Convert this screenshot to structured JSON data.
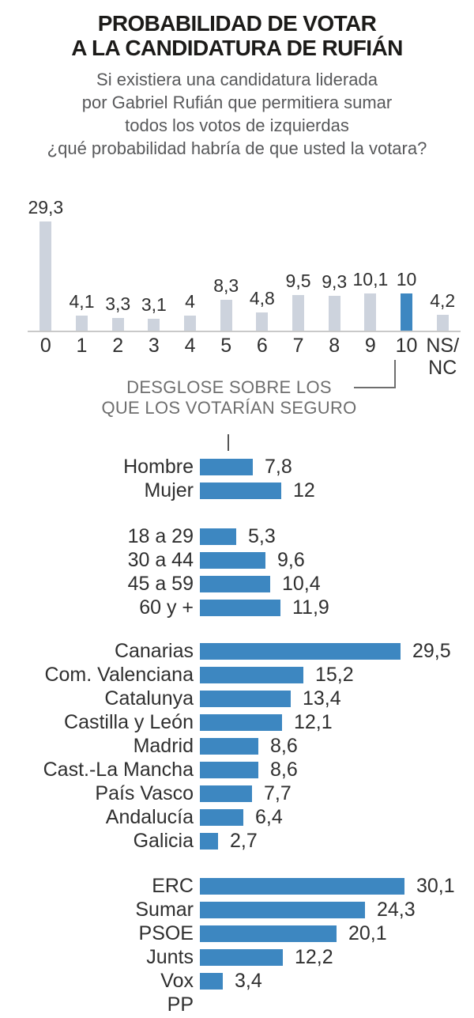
{
  "title": {
    "line1": "PROBABILIDAD DE VOTAR",
    "line2": "A LA CANDIDATURA DE RUFIÁN"
  },
  "subtitle": {
    "line1": "Si existiera una candidatura liderada",
    "line2": "por Gabriel Rufián que permitiera sumar",
    "line3": "todos los votos de izquierdas",
    "line4": "¿qué probabilidad habría de que usted la votara?"
  },
  "note": {
    "line1": "DESGLOSE SOBRE LOS",
    "line2": "QUE LOS VOTARÍAN SEGURO"
  },
  "colors": {
    "bar_blue": "#3d87c1",
    "bar_gray": "#cdd3dd",
    "axis_line": "#c9c9c9",
    "text_dark": "#2f2f2f",
    "subtitle_gray": "#58595b",
    "note_gray": "#6e6e6e"
  },
  "chart_data": [
    {
      "type": "bar",
      "orientation": "vertical",
      "group": "probabilidad-0-10",
      "categories": [
        "0",
        "1",
        "2",
        "3",
        "4",
        "5",
        "6",
        "7",
        "8",
        "9",
        "10",
        "NS/NC"
      ],
      "values": [
        29.3,
        4.1,
        3.3,
        3.1,
        4,
        8.3,
        4.8,
        9.5,
        9.3,
        10.1,
        10,
        4.2
      ],
      "value_labels": [
        "29,3",
        "4,1",
        "3,3",
        "3,1",
        "4",
        "8,3",
        "4,8",
        "9,5",
        "9,3",
        "10,1",
        "10",
        "4,2"
      ],
      "highlight_index": 10,
      "ylim": [
        0,
        30
      ],
      "grid": false,
      "legend": false
    },
    {
      "type": "bar",
      "orientation": "horizontal",
      "group": "sexo",
      "categories": [
        "Hombre",
        "Mujer"
      ],
      "values": [
        7.8,
        12
      ],
      "value_labels": [
        "7,8",
        "12"
      ]
    },
    {
      "type": "bar",
      "orientation": "horizontal",
      "group": "edad",
      "categories": [
        "18 a 29",
        "30 a 44",
        "45 a 59",
        "60 y +"
      ],
      "values": [
        5.3,
        9.6,
        10.4,
        11.9
      ],
      "value_labels": [
        "5,3",
        "9,6",
        "10,4",
        "11,9"
      ]
    },
    {
      "type": "bar",
      "orientation": "horizontal",
      "group": "territorio",
      "categories": [
        "Canarias",
        "Com. Valenciana",
        "Catalunya",
        "Castilla y León",
        "Madrid",
        "Cast.-La Mancha",
        "País Vasco",
        "Andalucía",
        "Galicia"
      ],
      "values": [
        29.5,
        15.2,
        13.4,
        12.1,
        8.6,
        8.6,
        7.7,
        6.4,
        2.7
      ],
      "value_labels": [
        "29,5",
        "15,2",
        "13,4",
        "12,1",
        "8,6",
        "8,6",
        "7,7",
        "6,4",
        "2,7"
      ]
    },
    {
      "type": "bar",
      "orientation": "horizontal",
      "group": "partido",
      "categories": [
        "ERC",
        "Sumar",
        "PSOE",
        "Junts",
        "Vox",
        "PP"
      ],
      "values": [
        30.1,
        24.3,
        20.1,
        12.2,
        3.4,
        null
      ],
      "value_labels": [
        "30,1",
        "24,3",
        "20,1",
        "12,2",
        "3,4",
        ""
      ]
    }
  ]
}
